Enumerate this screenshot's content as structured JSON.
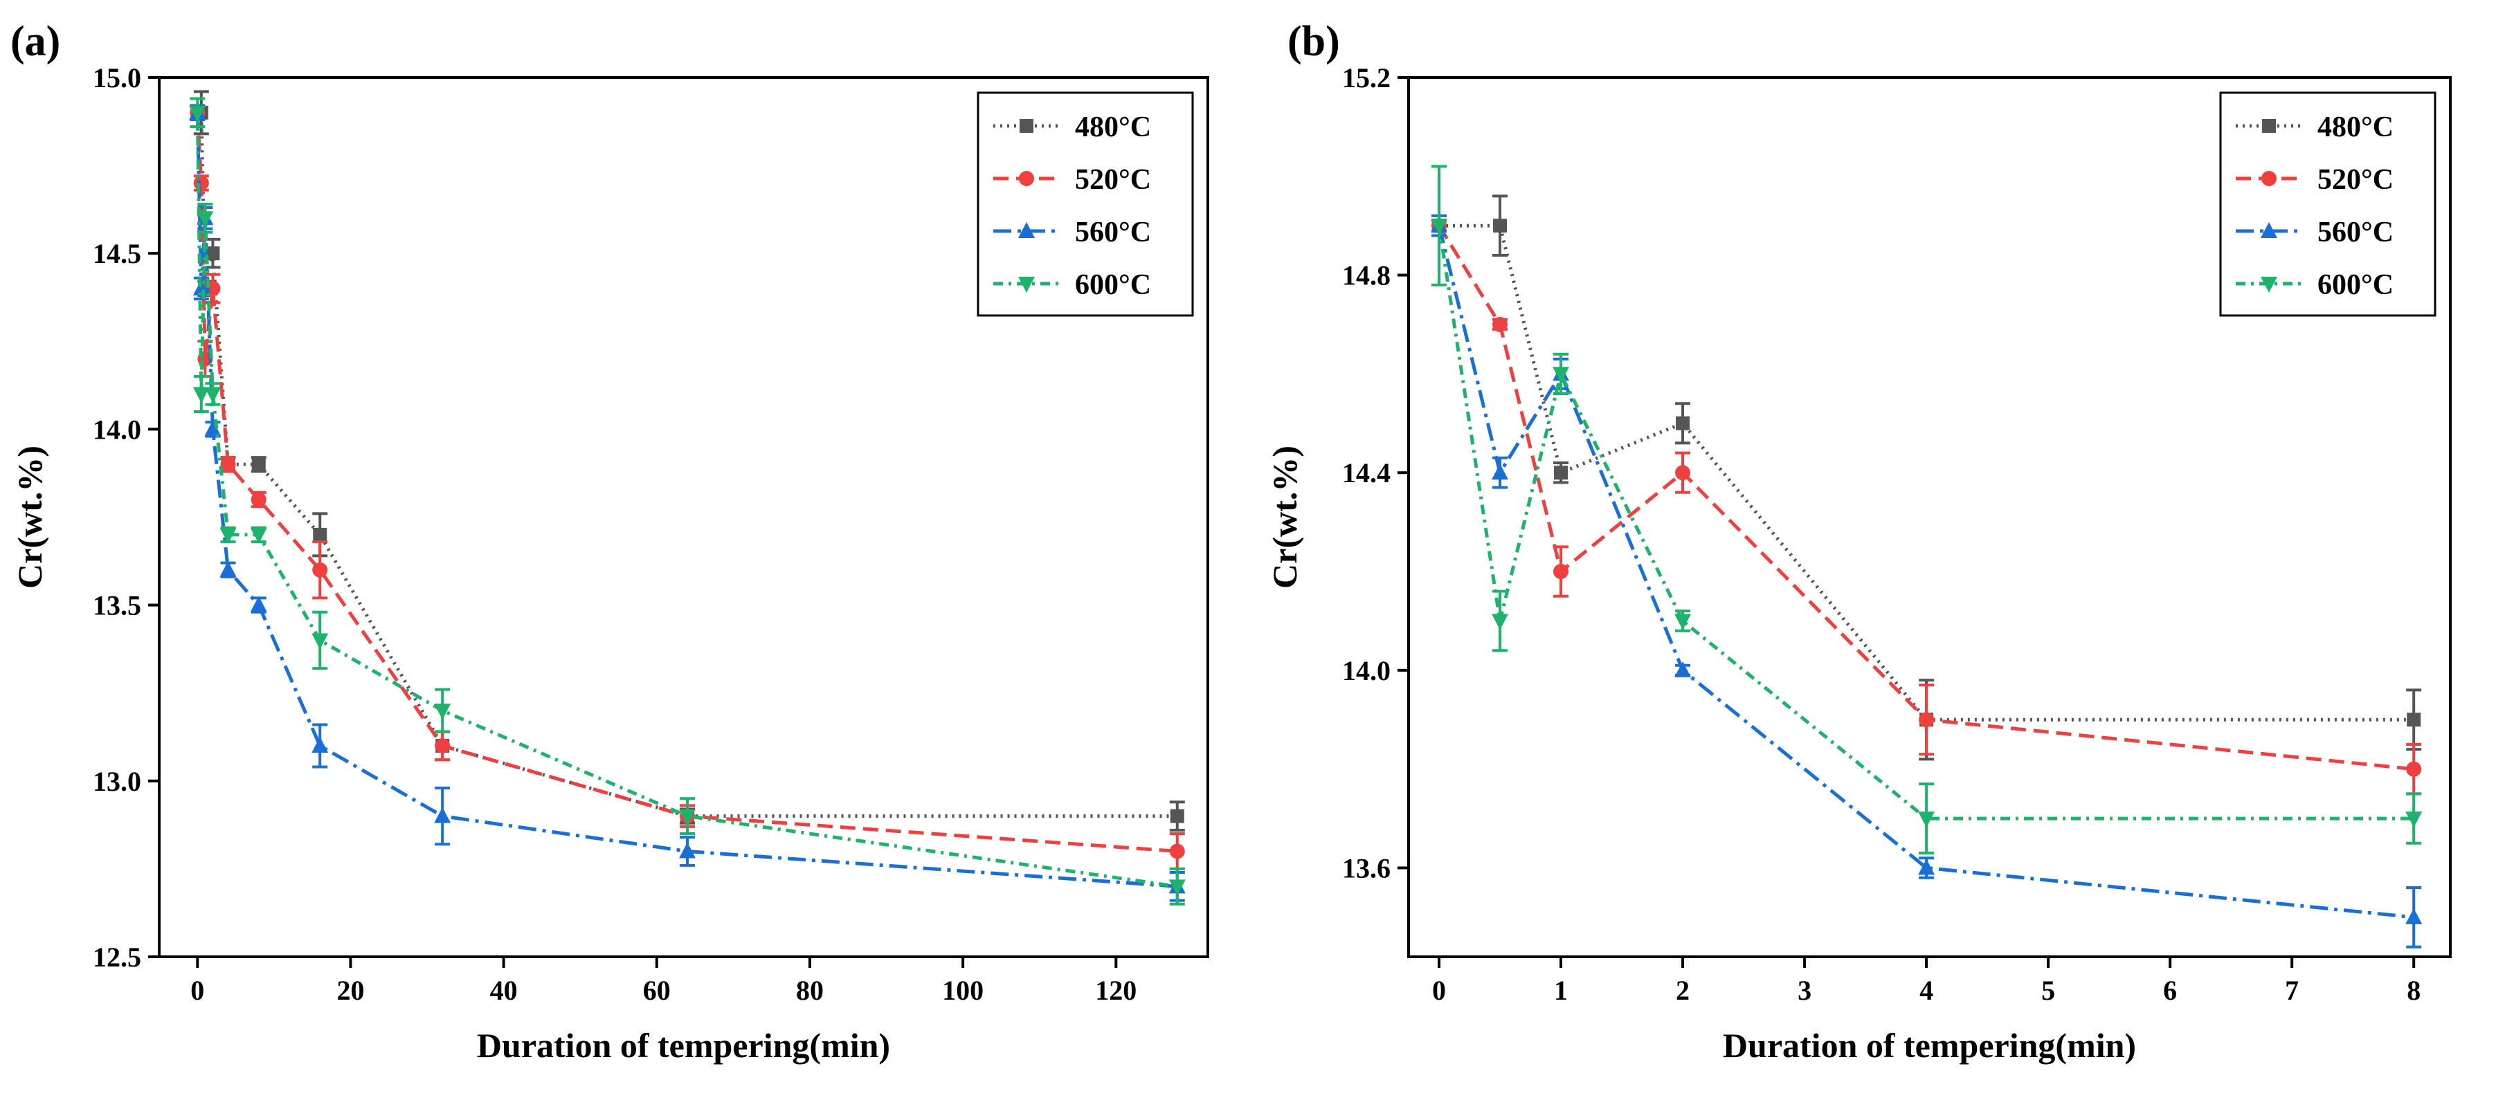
{
  "chart_data": [
    {
      "id": "a",
      "type": "line",
      "panel_label": "(a)",
      "title": "",
      "xlabel": "Duration of tempering(min)",
      "ylabel": "Cr(wt.%)",
      "xlim": [
        -5,
        132
      ],
      "ylim": [
        12.5,
        15.0
      ],
      "x_ticks": [
        0,
        20,
        40,
        60,
        80,
        100,
        120
      ],
      "x_tick_labels": [
        "0",
        "20",
        "40",
        "60",
        "80",
        "100",
        "120"
      ],
      "y_ticks": [
        12.5,
        13.0,
        13.5,
        14.0,
        14.5,
        15.0
      ],
      "y_tick_labels": [
        "12.5",
        "13.0",
        "13.5",
        "14.0",
        "14.5",
        "15.0"
      ],
      "grid": false,
      "legend_position": "top-right",
      "x": [
        0,
        0.5,
        1,
        2,
        4,
        8,
        16,
        32,
        64,
        128
      ],
      "series": [
        {
          "name": "480°C",
          "color": "#555555",
          "marker": "square",
          "dash": "dotted",
          "values": [
            14.9,
            14.9,
            14.4,
            14.5,
            13.9,
            13.9,
            13.7,
            13.1,
            12.9,
            12.9
          ],
          "errors": [
            0.02,
            0.06,
            0.02,
            0.04,
            0.02,
            0.02,
            0.06,
            0.04,
            0.02,
            0.04
          ]
        },
        {
          "name": "520°C",
          "color": "#ef4040",
          "marker": "circle",
          "dash": "dashed",
          "values": [
            14.9,
            14.7,
            14.2,
            14.4,
            13.9,
            13.8,
            13.6,
            13.1,
            12.9,
            12.8
          ],
          "errors": [
            0.02,
            0.02,
            0.05,
            0.04,
            0.02,
            0.02,
            0.08,
            0.04,
            0.03,
            0.05
          ]
        },
        {
          "name": "560°C",
          "color": "#1a6fd6",
          "marker": "triangle-up",
          "dash": "dashdot",
          "values": [
            14.9,
            14.4,
            14.6,
            14.0,
            13.6,
            13.5,
            13.1,
            12.9,
            12.8,
            12.7
          ],
          "errors": [
            0.02,
            0.03,
            0.03,
            0.02,
            0.02,
            0.02,
            0.06,
            0.08,
            0.04,
            0.04
          ]
        },
        {
          "name": "600°C",
          "color": "#1fb26b",
          "marker": "triangle-down",
          "dash": "dashdotdense",
          "values": [
            14.9,
            14.1,
            14.6,
            14.1,
            13.7,
            13.7,
            13.4,
            13.2,
            12.9,
            12.7
          ],
          "errors": [
            0.04,
            0.05,
            0.04,
            0.03,
            0.02,
            0.02,
            0.08,
            0.06,
            0.05,
            0.05
          ]
        }
      ]
    },
    {
      "id": "b",
      "type": "line",
      "panel_label": "(b)",
      "title": "",
      "xlabel": "Duration of tempering(min)",
      "ylabel": "Cr(wt.%)",
      "xlim": [
        -0.25,
        8.3
      ],
      "ylim": [
        13.42,
        15.2
      ],
      "x_ticks": [
        0,
        1,
        2,
        3,
        4,
        5,
        6,
        7,
        8
      ],
      "x_tick_labels": [
        "0",
        "1",
        "2",
        "3",
        "4",
        "5",
        "6",
        "7",
        "8"
      ],
      "y_ticks": [
        13.6,
        14.0,
        14.4,
        14.8,
        15.2
      ],
      "y_tick_labels": [
        "13.6",
        "14.0",
        "14.4",
        "14.8",
        "15.2"
      ],
      "grid": false,
      "legend_position": "top-right",
      "x": [
        0,
        0.5,
        1,
        2,
        4,
        8
      ],
      "series": [
        {
          "name": "480°C",
          "color": "#555555",
          "marker": "square",
          "dash": "dotted",
          "values": [
            14.9,
            14.9,
            14.4,
            14.5,
            13.9,
            13.9
          ],
          "errors": [
            0.01,
            0.06,
            0.02,
            0.04,
            0.08,
            0.06
          ]
        },
        {
          "name": "520°C",
          "color": "#ef4040",
          "marker": "circle",
          "dash": "dashed",
          "values": [
            14.9,
            14.7,
            14.2,
            14.4,
            13.9,
            13.8
          ],
          "errors": [
            0.01,
            0.01,
            0.05,
            0.04,
            0.07,
            0.05
          ]
        },
        {
          "name": "560°C",
          "color": "#1a6fd6",
          "marker": "triangle-up",
          "dash": "dashdot",
          "values": [
            14.9,
            14.4,
            14.6,
            14.0,
            13.6,
            13.5
          ],
          "errors": [
            0.02,
            0.03,
            0.03,
            0.01,
            0.02,
            0.06
          ]
        },
        {
          "name": "600°C",
          "color": "#1fb26b",
          "marker": "triangle-down",
          "dash": "dashdotdense",
          "values": [
            14.9,
            14.1,
            14.6,
            14.1,
            13.7,
            13.7
          ],
          "errors": [
            0.12,
            0.06,
            0.04,
            0.02,
            0.07,
            0.05
          ]
        }
      ]
    }
  ]
}
